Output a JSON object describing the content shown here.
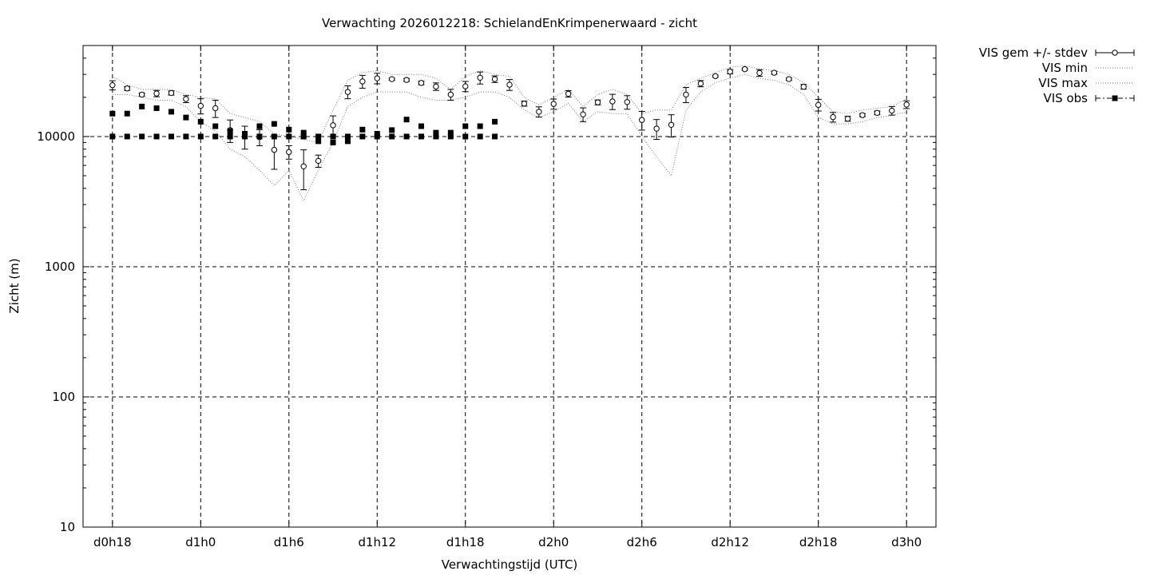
{
  "chart_data": {
    "type": "scatter",
    "title": "Verwachting 2026012218: SchielandEnKrimpenerwaard - zicht",
    "xlabel": "Verwachtingstijd (UTC)",
    "ylabel": "Zicht (m)",
    "x_unit": "hours",
    "xlim": [
      16,
      74
    ],
    "ylim": [
      10,
      50000
    ],
    "yscale": "log",
    "grid": true,
    "legend_position": "outside-right",
    "x_ticks": [
      {
        "value": 18,
        "label": "d0h18"
      },
      {
        "value": 24,
        "label": "d1h0"
      },
      {
        "value": 30,
        "label": "d1h6"
      },
      {
        "value": 36,
        "label": "d1h12"
      },
      {
        "value": 42,
        "label": "d1h18"
      },
      {
        "value": 48,
        "label": "d2h0"
      },
      {
        "value": 54,
        "label": "d2h6"
      },
      {
        "value": 60,
        "label": "d2h12"
      },
      {
        "value": 66,
        "label": "d2h18"
      },
      {
        "value": 72,
        "label": "d3h0"
      }
    ],
    "y_ticks": [
      {
        "value": 10,
        "label": "10"
      },
      {
        "value": 100,
        "label": "100"
      },
      {
        "value": 1000,
        "label": "1000"
      },
      {
        "value": 10000,
        "label": "10000"
      }
    ],
    "legend": [
      {
        "label": "VIS gem +/- stdev"
      },
      {
        "label": "VIS min"
      },
      {
        "label": "VIS max"
      },
      {
        "label": "VIS obs"
      }
    ],
    "series": [
      {
        "name": "VIS gem +/- stdev",
        "x": [
          18,
          19,
          20,
          21,
          22,
          23,
          24,
          25,
          26,
          27,
          28,
          29,
          30,
          31,
          32,
          33,
          34,
          35,
          36,
          37,
          38,
          39,
          40,
          41,
          42,
          43,
          44,
          45,
          46,
          47,
          48,
          49,
          50,
          51,
          52,
          53,
          54,
          55,
          56,
          57,
          58,
          59,
          60,
          61,
          62,
          63,
          64,
          65,
          66,
          67,
          68,
          69,
          70,
          71,
          72
        ],
        "mean": [
          24800,
          23400,
          21000,
          21400,
          21600,
          19400,
          17200,
          16500,
          11200,
          10000,
          9900,
          7900,
          7600,
          5900,
          6500,
          12200,
          22000,
          26500,
          28000,
          27600,
          27200,
          25800,
          24200,
          21000,
          24300,
          28300,
          27600,
          25000,
          17900,
          15500,
          17800,
          21300,
          14800,
          18300,
          18600,
          18400,
          13400,
          11500,
          12300,
          21000,
          25500,
          29100,
          31500,
          32900,
          30800,
          30900,
          27600,
          24100,
          17500,
          14100,
          13700,
          14600,
          15200,
          15800,
          17600
        ],
        "stdev": [
          2000,
          800,
          600,
          1200,
          800,
          1200,
          2300,
          2500,
          2200,
          2000,
          1400,
          2300,
          900,
          2000,
          700,
          2200,
          2500,
          3000,
          2600,
          500,
          700,
          800,
          1600,
          2000,
          2200,
          3000,
          1600,
          2400,
          800,
          1400,
          1600,
          1200,
          1800,
          800,
          2500,
          2200,
          2200,
          2000,
          2400,
          2800,
          1400,
          500,
          1200,
          600,
          1800,
          800,
          600,
          1000,
          1800,
          1200,
          600,
          400,
          500,
          1200,
          1200
        ]
      },
      {
        "name": "VIS min",
        "x": [
          18,
          19,
          20,
          21,
          22,
          23,
          24,
          25,
          26,
          27,
          28,
          29,
          30,
          31,
          32,
          33,
          34,
          35,
          36,
          37,
          38,
          39,
          40,
          41,
          42,
          43,
          44,
          45,
          46,
          47,
          48,
          49,
          50,
          51,
          52,
          53,
          54,
          55,
          56,
          57,
          58,
          59,
          60,
          61,
          62,
          63,
          64,
          65,
          66,
          67,
          68,
          69,
          70,
          71,
          72
        ],
        "values": [
          21000,
          21000,
          20000,
          19000,
          19000,
          17000,
          13000,
          11000,
          8000,
          7000,
          5500,
          4200,
          5500,
          3200,
          5500,
          9000,
          17000,
          20000,
          22000,
          22000,
          22000,
          20000,
          19000,
          19000,
          20000,
          22000,
          22000,
          20000,
          16000,
          14000,
          15500,
          18000,
          13000,
          15500,
          15000,
          15000,
          10000,
          7000,
          5000,
          16000,
          22000,
          26000,
          28000,
          30000,
          28000,
          27000,
          25000,
          21000,
          14000,
          12500,
          12500,
          13000,
          14000,
          14500,
          15500
        ]
      },
      {
        "name": "VIS max",
        "x": [
          18,
          19,
          20,
          21,
          22,
          23,
          24,
          25,
          26,
          27,
          28,
          29,
          30,
          31,
          32,
          33,
          34,
          35,
          36,
          37,
          38,
          39,
          40,
          41,
          42,
          43,
          44,
          45,
          46,
          47,
          48,
          49,
          50,
          51,
          52,
          53,
          54,
          55,
          56,
          57,
          58,
          59,
          60,
          61,
          62,
          63,
          64,
          65,
          66,
          67,
          68,
          69,
          70,
          71,
          72
        ],
        "values": [
          29000,
          25000,
          23000,
          23000,
          23000,
          21000,
          20000,
          19500,
          15000,
          14000,
          13000,
          10500,
          10000,
          9500,
          9000,
          16000,
          27000,
          31000,
          32000,
          30000,
          30000,
          30000,
          28000,
          23000,
          29000,
          32000,
          30000,
          29000,
          20000,
          17500,
          20000,
          23000,
          17000,
          21000,
          23000,
          21000,
          15000,
          16000,
          16000,
          25000,
          28000,
          31000,
          34000,
          35000,
          33000,
          32000,
          30000,
          26000,
          20000,
          15500,
          15000,
          16000,
          16500,
          17000,
          19500
        ]
      },
      {
        "name": "VIS obs",
        "x": [
          18,
          18,
          19,
          19,
          20,
          20,
          21,
          21,
          22,
          22,
          23,
          23,
          24,
          24,
          25,
          25,
          26,
          26,
          27,
          27,
          28,
          28,
          29,
          29,
          30,
          30,
          31,
          31,
          32,
          32,
          33,
          33,
          34,
          34,
          35,
          35,
          36,
          36,
          37,
          37,
          38,
          38,
          39,
          39,
          40,
          40,
          41,
          41,
          42,
          42,
          43,
          43,
          44,
          44
        ],
        "values": [
          15000,
          10000,
          15000,
          10000,
          17000,
          10000,
          16500,
          10000,
          15500,
          10000,
          14000,
          10000,
          13000,
          10000,
          12000,
          10000,
          11000,
          10000,
          10500,
          10000,
          12000,
          10000,
          12500,
          10000,
          11300,
          10000,
          10700,
          10000,
          9200,
          10000,
          9000,
          10000,
          9200,
          10000,
          11300,
          10000,
          10500,
          10000,
          11200,
          10000,
          13500,
          10000,
          12000,
          10000,
          10700,
          10000,
          10700,
          10000,
          12000,
          10000,
          12000,
          10000,
          13000,
          10000
        ]
      }
    ]
  }
}
